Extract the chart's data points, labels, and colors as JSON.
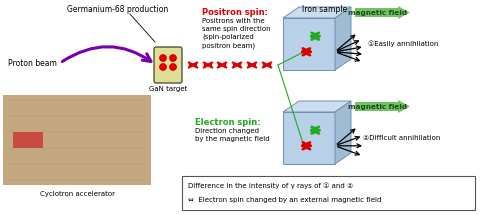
{
  "bg_color": "#ffffff",
  "gan_label": "GaN target",
  "ge68_label": "Germanium-68 production",
  "proton_label": "Proton beam",
  "cyclotron_label": "Cyclotron accelerator",
  "iron_label": "Iron sample",
  "positron_spin_title": "Positron spin:",
  "positron_spin_desc": "Positrons with the\nsame spin direction\n(spin-polarized\npositron beam)",
  "electron_spin_title": "Electron spin:",
  "electron_spin_desc": "Direction changed\nby the magnetic field",
  "mag_field": "magnetic field",
  "easily": "①Easily annihilation",
  "difficult": "②Difficult annihilation",
  "note_line1": "Difference in the intensity of γ rays of ① and ②",
  "note_line2": "⇔  Electron spin changed by an external magnetic field",
  "red": "#dd0000",
  "green": "#22aa22",
  "purple": "#7700aa",
  "arrow_green": "#55bb44",
  "box_blue_front": "#b8d0e8",
  "box_blue_top": "#ccddf0",
  "box_blue_right": "#a0bcd4",
  "box_edge": "#7090b0"
}
